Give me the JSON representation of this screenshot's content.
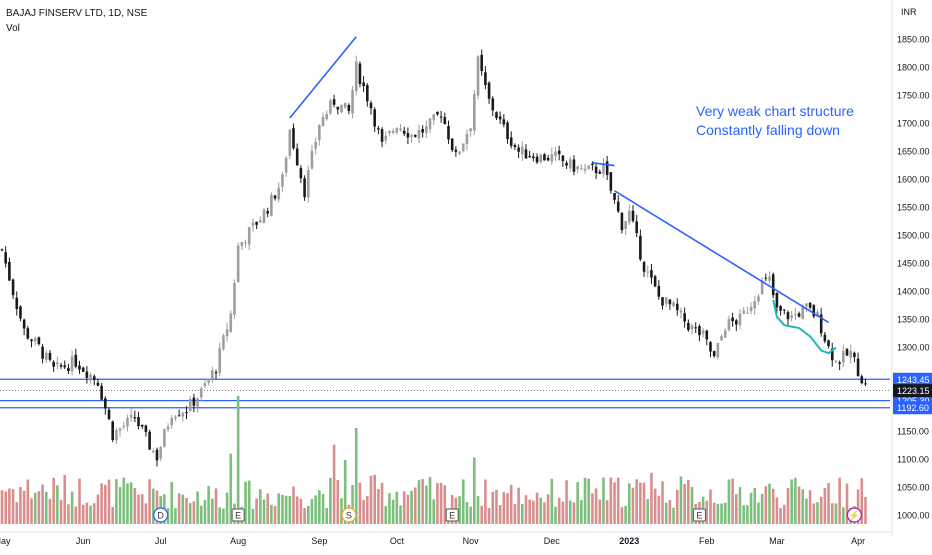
{
  "header": {
    "symbol": "BAJAJ FINSERV LTD, 1D, NSE",
    "volume_label": "Vol"
  },
  "currency": "INR",
  "annotation": {
    "line1": "Very weak chart structure",
    "line2": "Constantly falling down"
  },
  "colors": {
    "up": "#9e9e9e",
    "down": "#1a1a1a",
    "vol_up": "#7cbf7c",
    "vol_down": "#d98e8e",
    "trend": "#2962ff",
    "curve": "#26b5b5",
    "price_tag": "#131722",
    "level_tag": "#2962ff"
  },
  "chart_data": {
    "type": "candlestick",
    "title": "BAJAJ FINSERV LTD, 1D, NSE",
    "y_unit": "INR",
    "ylim": [
      985,
      1885
    ],
    "y_ticks": [
      1850,
      1800,
      1750,
      1700,
      1650,
      1600,
      1550,
      1500,
      1450,
      1400,
      1350,
      1300,
      1150,
      1100,
      1050,
      1000
    ],
    "y_tick_labels": [
      "1850.00",
      "1800.00",
      "1750.00",
      "1700.00",
      "1650.00",
      "1600.00",
      "1550.00",
      "1500.00",
      "1450.00",
      "1400.00",
      "1350.00",
      "1300.00",
      "1150.00",
      "1100.00",
      "1050.00",
      "1000.00"
    ],
    "x_labels": [
      {
        "label": "May",
        "day": 0
      },
      {
        "label": "Jun",
        "day": 22
      },
      {
        "label": "Jul",
        "day": 43
      },
      {
        "label": "Aug",
        "day": 64
      },
      {
        "label": "Sep",
        "day": 86
      },
      {
        "label": "Oct",
        "day": 107
      },
      {
        "label": "Nov",
        "day": 127
      },
      {
        "label": "Dec",
        "day": 149
      },
      {
        "label": "2023",
        "day": 170
      },
      {
        "label": "Feb",
        "day": 191
      },
      {
        "label": "Mar",
        "day": 210
      },
      {
        "label": "Apr",
        "day": 232
      }
    ],
    "price_keys": [
      [
        0,
        1475
      ],
      [
        3,
        1400
      ],
      [
        6,
        1330
      ],
      [
        10,
        1300
      ],
      [
        14,
        1260
      ],
      [
        20,
        1275
      ],
      [
        26,
        1240
      ],
      [
        30,
        1145
      ],
      [
        36,
        1175
      ],
      [
        40,
        1125
      ],
      [
        42,
        1105
      ],
      [
        46,
        1185
      ],
      [
        50,
        1190
      ],
      [
        54,
        1220
      ],
      [
        58,
        1265
      ],
      [
        62,
        1360
      ],
      [
        64,
        1480
      ],
      [
        68,
        1515
      ],
      [
        72,
        1550
      ],
      [
        76,
        1600
      ],
      [
        78,
        1690
      ],
      [
        82,
        1580
      ],
      [
        86,
        1700
      ],
      [
        90,
        1740
      ],
      [
        94,
        1720
      ],
      [
        96,
        1800
      ],
      [
        100,
        1730
      ],
      [
        103,
        1660
      ],
      [
        107,
        1700
      ],
      [
        111,
        1680
      ],
      [
        115,
        1690
      ],
      [
        119,
        1720
      ],
      [
        123,
        1640
      ],
      [
        127,
        1700
      ],
      [
        129,
        1810
      ],
      [
        132,
        1740
      ],
      [
        136,
        1690
      ],
      [
        140,
        1650
      ],
      [
        146,
        1640
      ],
      [
        150,
        1640
      ],
      [
        154,
        1625
      ],
      [
        158,
        1615
      ],
      [
        163,
        1620
      ],
      [
        166,
        1560
      ],
      [
        168,
        1520
      ],
      [
        170,
        1540
      ],
      [
        174,
        1445
      ],
      [
        178,
        1390
      ],
      [
        182,
        1370
      ],
      [
        186,
        1340
      ],
      [
        190,
        1320
      ],
      [
        193,
        1280
      ],
      [
        196,
        1340
      ],
      [
        200,
        1350
      ],
      [
        203,
        1380
      ],
      [
        206,
        1415
      ],
      [
        208,
        1420
      ],
      [
        210,
        1365
      ],
      [
        214,
        1355
      ],
      [
        218,
        1370
      ],
      [
        221,
        1355
      ],
      [
        224,
        1300
      ],
      [
        226,
        1275
      ],
      [
        230,
        1290
      ],
      [
        234,
        1230
      ]
    ],
    "volume_keys": [
      [
        0,
        0.28
      ],
      [
        30,
        0.25
      ],
      [
        60,
        0.22
      ],
      [
        100,
        0.26
      ],
      [
        140,
        0.23
      ],
      [
        170,
        0.26
      ],
      [
        200,
        0.24
      ],
      [
        234,
        0.25
      ]
    ],
    "volume_spikes": [
      [
        62,
        0.55
      ],
      [
        64,
        1.0
      ],
      [
        90,
        0.62
      ],
      [
        93,
        0.5
      ],
      [
        96,
        0.75
      ],
      [
        128,
        0.52
      ],
      [
        176,
        0.4
      ],
      [
        224,
        0.32
      ]
    ],
    "horizontal_levels": [
      {
        "value": 1243.45,
        "label": "1243.45"
      },
      {
        "value": 1205.3,
        "label": "1205.30"
      },
      {
        "value": 1192.6,
        "label": "1192.60"
      }
    ],
    "current_price": {
      "value": 1223.15,
      "label": "1223.15"
    },
    "trendlines": [
      {
        "from": [
          78,
          1710
        ],
        "to": [
          96,
          1855
        ]
      },
      {
        "from": [
          166,
          1580
        ],
        "to": [
          224,
          1345
        ]
      },
      {
        "from": [
          160,
          1630
        ],
        "to": [
          166,
          1625
        ]
      }
    ],
    "curve": [
      [
        209,
        1385
      ],
      [
        210,
        1355
      ],
      [
        212,
        1340
      ],
      [
        216,
        1335
      ],
      [
        219,
        1320
      ],
      [
        222,
        1295
      ],
      [
        224,
        1290
      ],
      [
        226,
        1300
      ]
    ],
    "event_markers": [
      {
        "day": 43,
        "label": "D",
        "kind": "dividend"
      },
      {
        "day": 64,
        "label": "E",
        "kind": "earnings"
      },
      {
        "day": 94,
        "label": "S",
        "kind": "split"
      },
      {
        "day": 122,
        "label": "E",
        "kind": "earnings"
      },
      {
        "day": 189,
        "label": "E",
        "kind": "earnings"
      },
      {
        "day": 231,
        "label": "⚡",
        "kind": "flash"
      }
    ]
  }
}
